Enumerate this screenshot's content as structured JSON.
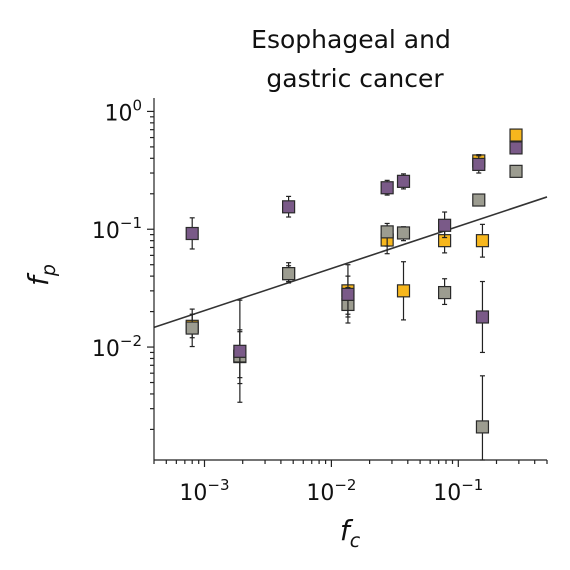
{
  "chart_data": {
    "type": "scatter",
    "title": [
      "Esophageal and",
      "gastric cancer"
    ],
    "xlabel": {
      "base": "f",
      "sub": "c"
    },
    "ylabel": {
      "base": "f",
      "sub": "p"
    },
    "xscale": "log",
    "yscale": "log",
    "xlim": [
      0.0004,
      0.5
    ],
    "ylim": [
      0.0011,
      1.3
    ],
    "xticks": [
      {
        "value": 0.001,
        "base": "10",
        "exp": "−3"
      },
      {
        "value": 0.01,
        "base": "10",
        "exp": "−2"
      },
      {
        "value": 0.1,
        "base": "10",
        "exp": "−1"
      }
    ],
    "yticks": [
      {
        "value": 0.01,
        "base": "10",
        "exp": "−2"
      },
      {
        "value": 0.1,
        "base": "10",
        "exp": "−1"
      },
      {
        "value": 1,
        "base": "10",
        "exp": "0"
      }
    ],
    "legend": "none",
    "grid": false,
    "fit_line": {
      "x": [
        0.0004,
        0.5
      ],
      "y": [
        0.0147,
        0.188
      ],
      "color": "#333333"
    },
    "series": [
      {
        "color": "#f7b71d",
        "points": [
          {
            "x": 0.0008,
            "y": 0.015,
            "lo": 0.012,
            "hi": 0.019
          },
          {
            "x": 0.0019,
            "y": 0.0083,
            "lo": 0.0049,
            "hi": 0.0135
          },
          {
            "x": 0.0046,
            "y": 0.042,
            "lo": 0.036,
            "hi": 0.049
          },
          {
            "x": 0.0135,
            "y": 0.03,
            "lo": 0.018,
            "hi": 0.05
          },
          {
            "x": 0.0275,
            "y": 0.081,
            "lo": 0.062,
            "hi": 0.104
          },
          {
            "x": 0.037,
            "y": 0.03,
            "lo": 0.017,
            "hi": 0.053
          },
          {
            "x": 0.078,
            "y": 0.08,
            "lo": 0.063,
            "hi": 0.1
          },
          {
            "x": 0.145,
            "y": 0.38,
            "lo": 0.32,
            "hi": 0.43
          },
          {
            "x": 0.155,
            "y": 0.08,
            "lo": 0.058,
            "hi": 0.11
          },
          {
            "x": 0.285,
            "y": 0.63,
            "lo": 0.6,
            "hi": 0.66
          }
        ]
      },
      {
        "color": "#9c9c90",
        "points": [
          {
            "x": 0.0008,
            "y": 0.0145,
            "lo": 0.0101,
            "hi": 0.021
          },
          {
            "x": 0.0019,
            "y": 0.0084,
            "lo": 0.0034,
            "hi": 0.025
          },
          {
            "x": 0.0046,
            "y": 0.042,
            "lo": 0.035,
            "hi": 0.052
          },
          {
            "x": 0.0135,
            "y": 0.023,
            "lo": 0.016,
            "hi": 0.032
          },
          {
            "x": 0.0275,
            "y": 0.095,
            "lo": 0.072,
            "hi": 0.112
          },
          {
            "x": 0.037,
            "y": 0.093,
            "lo": 0.08,
            "hi": 0.105
          },
          {
            "x": 0.078,
            "y": 0.029,
            "lo": 0.023,
            "hi": 0.038
          },
          {
            "x": 0.145,
            "y": 0.177,
            "lo": 0.165,
            "hi": 0.19
          },
          {
            "x": 0.155,
            "y": 0.0021,
            "lo": 0.0011,
            "hi": 0.0057
          },
          {
            "x": 0.285,
            "y": 0.31,
            "lo": 0.29,
            "hi": 0.33
          }
        ]
      },
      {
        "color": "#7a5a88",
        "points": [
          {
            "x": 0.0008,
            "y": 0.092,
            "lo": 0.068,
            "hi": 0.125
          },
          {
            "x": 0.0019,
            "y": 0.0092,
            "lo": 0.0055,
            "hi": 0.014
          },
          {
            "x": 0.0046,
            "y": 0.155,
            "lo": 0.127,
            "hi": 0.19
          },
          {
            "x": 0.0135,
            "y": 0.028,
            "lo": 0.019,
            "hi": 0.04
          },
          {
            "x": 0.0275,
            "y": 0.225,
            "lo": 0.195,
            "hi": 0.26
          },
          {
            "x": 0.037,
            "y": 0.255,
            "lo": 0.22,
            "hi": 0.295
          },
          {
            "x": 0.078,
            "y": 0.108,
            "lo": 0.085,
            "hi": 0.14
          },
          {
            "x": 0.145,
            "y": 0.355,
            "lo": 0.3,
            "hi": 0.42
          },
          {
            "x": 0.155,
            "y": 0.018,
            "lo": 0.009,
            "hi": 0.036
          },
          {
            "x": 0.285,
            "y": 0.49,
            "lo": 0.45,
            "hi": 0.54
          }
        ]
      }
    ]
  }
}
